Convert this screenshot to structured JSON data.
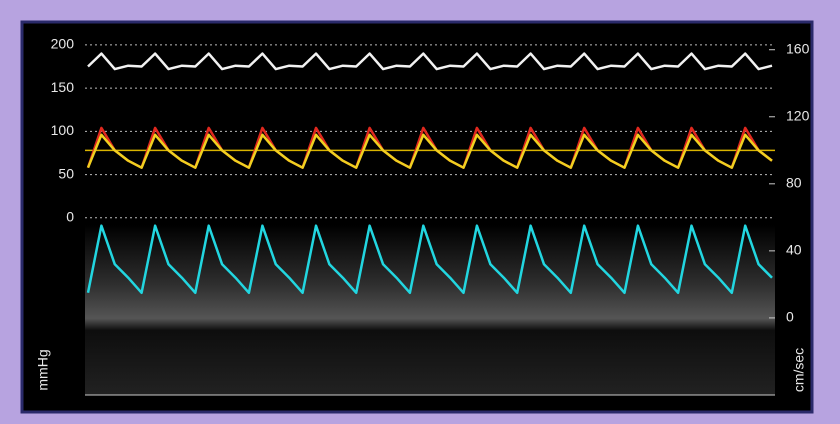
{
  "chart_data": {
    "type": "line",
    "ylabel": "mmHg",
    "y2label": "cm/sec",
    "ylim": [
      -205,
      208
    ],
    "yticks": [
      0,
      50,
      100,
      150,
      200
    ],
    "y2lim": [
      -46,
      167
    ],
    "y2ticks": [
      0,
      40,
      80,
      120,
      160
    ],
    "grid": true,
    "reference_line": {
      "value": 78,
      "color": "#d9b400"
    },
    "series": [
      {
        "color": "#f2f2f2",
        "values": [
          175,
          190,
          172,
          176,
          175,
          190,
          172,
          176,
          175,
          190,
          172,
          176,
          175,
          190,
          172,
          176,
          175,
          190,
          172,
          176,
          175,
          190,
          172,
          176,
          175,
          190,
          172,
          176,
          175,
          190,
          172,
          176,
          175,
          190,
          172,
          176,
          175,
          190,
          172,
          176,
          175,
          190,
          172,
          176,
          175,
          190,
          172,
          176,
          175,
          190,
          172,
          176
        ]
      },
      {
        "color": "#e0281e",
        "values": [
          58,
          104,
          78,
          66,
          58,
          104,
          78,
          66,
          58,
          104,
          78,
          66,
          58,
          104,
          78,
          66,
          58,
          104,
          78,
          66,
          58,
          104,
          78,
          66,
          58,
          104,
          78,
          66,
          58,
          104,
          78,
          66,
          58,
          104,
          78,
          66,
          58,
          104,
          78,
          66,
          58,
          104,
          78,
          66,
          58,
          104,
          78,
          66,
          58,
          104,
          78,
          66
        ]
      },
      {
        "color": "#f0d020",
        "values": [
          58,
          96,
          78,
          66,
          58,
          96,
          78,
          66,
          58,
          96,
          78,
          66,
          58,
          96,
          78,
          66,
          58,
          96,
          78,
          66,
          58,
          96,
          78,
          66,
          58,
          96,
          78,
          66,
          58,
          96,
          78,
          66,
          58,
          96,
          78,
          66,
          58,
          96,
          78,
          66,
          58,
          96,
          78,
          66,
          58,
          96,
          78,
          66,
          58,
          96,
          78,
          66
        ]
      },
      {
        "color": "#22d6e0",
        "axis": "y2",
        "values": [
          15,
          55,
          32,
          24,
          15,
          55,
          32,
          24,
          15,
          55,
          32,
          24,
          15,
          55,
          32,
          24,
          15,
          55,
          32,
          24,
          15,
          55,
          32,
          24,
          15,
          55,
          32,
          24,
          15,
          55,
          32,
          24,
          15,
          55,
          32,
          24,
          15,
          55,
          32,
          24,
          15,
          55,
          32,
          24,
          15,
          55,
          32,
          24,
          15,
          55,
          32,
          24
        ]
      }
    ]
  }
}
